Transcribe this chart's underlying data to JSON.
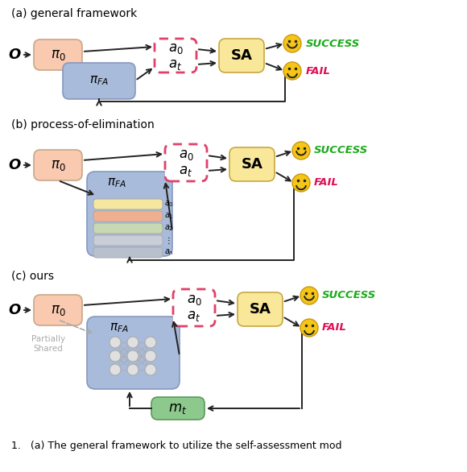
{
  "title_a": "(a) general framework",
  "title_b": "(b) process-of-elimination",
  "title_c": "(c) ours",
  "bg_color": "#ffffff",
  "salmon_box": "#F9C9B0",
  "blue_box_light": "#B8CAFE",
  "blue_box": "#A8BBDA",
  "yellow_box": "#FAE89A",
  "green_box": "#8DC88D",
  "dashed_color": "#E0406A",
  "success_color": "#1AAA1A",
  "fail_color": "#DD1155",
  "arrow_color": "#222222",
  "gray_color": "#AAAAAA",
  "layer_colors": [
    "#F5E6A0",
    "#F0B090",
    "#C8D8B0",
    "#C8CDD8",
    "#B8C0CE"
  ]
}
